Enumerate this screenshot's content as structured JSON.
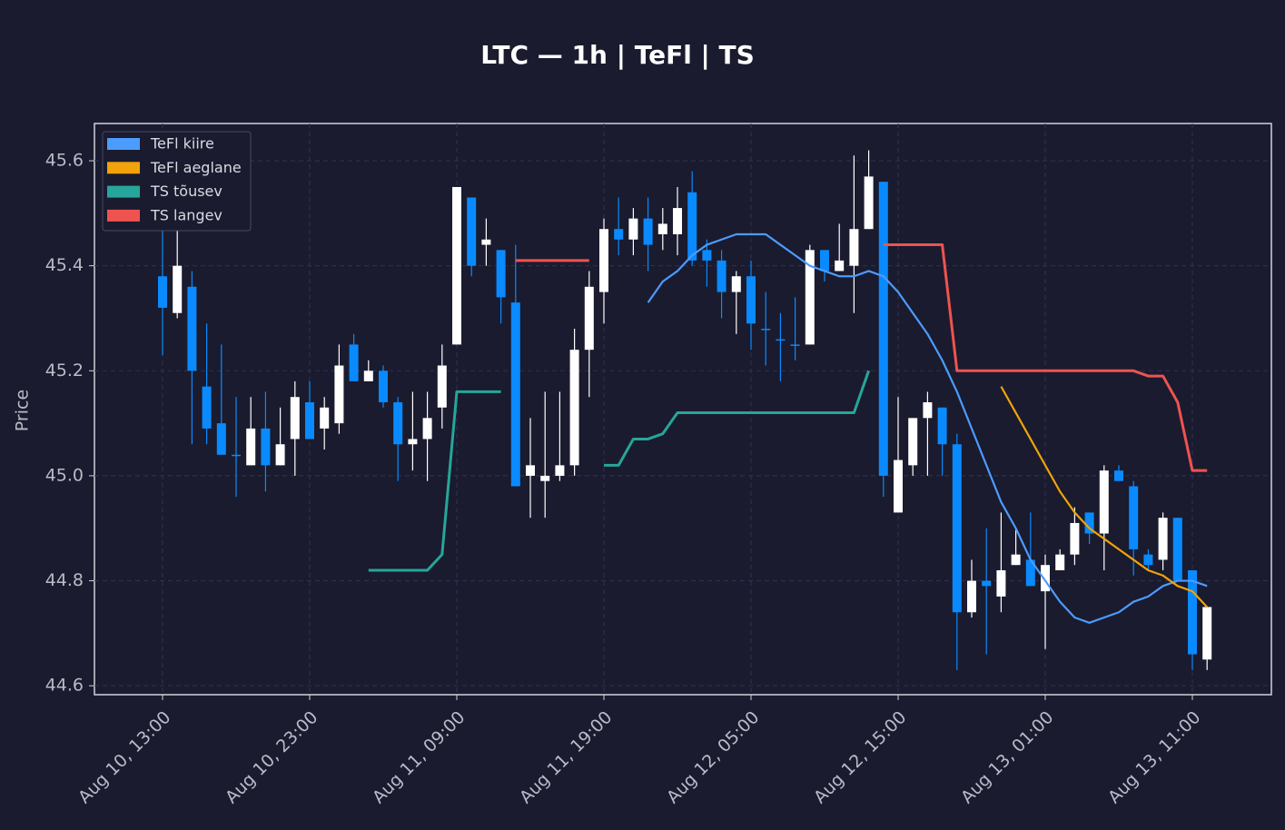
{
  "chart_data": {
    "type": "candlestick",
    "title": "LTC — 1h  |  TeFl  |  TS",
    "y_label": "Price",
    "categories": [
      "Aug 10, 13:00",
      null,
      null,
      null,
      null,
      null,
      null,
      null,
      null,
      null,
      "Aug 10, 23:00",
      null,
      null,
      null,
      null,
      null,
      null,
      null,
      null,
      null,
      "Aug 11, 09:00",
      null,
      null,
      null,
      null,
      null,
      null,
      null,
      null,
      null,
      "Aug 11, 19:00",
      null,
      null,
      null,
      null,
      null,
      null,
      null,
      null,
      null,
      "Aug 12, 05:00",
      null,
      null,
      null,
      null,
      null,
      null,
      null,
      null,
      null,
      "Aug 12, 15:00",
      null,
      null,
      null,
      null,
      null,
      null,
      null,
      null,
      null,
      "Aug 13, 01:00",
      null,
      null,
      null,
      null,
      null,
      null,
      null,
      null,
      null,
      "Aug 13, 11:00",
      null
    ],
    "ohlc": {
      "up_color": "#ffffff",
      "down_color": "#0a8aff",
      "open": [
        45.38,
        45.31,
        45.36,
        45.17,
        45.1,
        45.04,
        45.02,
        45.09,
        45.02,
        45.07,
        45.14,
        45.09,
        45.1,
        45.25,
        45.18,
        45.2,
        45.14,
        45.06,
        45.07,
        45.13,
        45.25,
        45.53,
        45.44,
        45.43,
        45.33,
        45.0,
        44.99,
        45.0,
        45.02,
        45.24,
        45.35,
        45.47,
        45.45,
        45.49,
        45.46,
        45.46,
        45.54,
        45.43,
        45.41,
        45.35,
        45.38,
        45.28,
        45.26,
        45.25,
        45.25,
        45.43,
        45.39,
        45.4,
        45.47,
        45.56,
        44.93,
        45.02,
        45.11,
        45.13,
        45.06,
        44.74,
        44.8,
        44.77,
        44.83,
        44.84,
        44.78,
        44.82,
        44.85,
        44.93,
        44.89,
        45.01,
        44.98,
        44.85,
        44.84,
        44.92,
        44.82,
        44.65
      ],
      "high": [
        45.49,
        45.49,
        45.39,
        45.29,
        45.25,
        45.15,
        45.15,
        45.16,
        45.13,
        45.18,
        45.18,
        45.15,
        45.25,
        45.27,
        45.22,
        45.21,
        45.15,
        45.16,
        45.16,
        45.25,
        45.55,
        45.53,
        45.49,
        45.43,
        45.44,
        45.11,
        45.16,
        45.16,
        45.28,
        45.39,
        45.49,
        45.53,
        45.51,
        45.53,
        45.51,
        45.55,
        45.58,
        45.45,
        45.43,
        45.39,
        45.41,
        45.35,
        45.31,
        45.34,
        45.44,
        45.43,
        45.48,
        45.61,
        45.62,
        45.56,
        45.15,
        45.11,
        45.16,
        45.13,
        45.08,
        44.84,
        44.9,
        44.93,
        44.9,
        44.93,
        44.85,
        44.86,
        44.94,
        44.93,
        45.02,
        45.02,
        44.99,
        44.86,
        44.93,
        44.92,
        44.82,
        44.75
      ],
      "low": [
        45.23,
        45.3,
        45.06,
        45.06,
        45.04,
        44.96,
        45.02,
        44.97,
        45.02,
        45.0,
        45.07,
        45.05,
        45.08,
        45.18,
        45.18,
        45.13,
        44.99,
        45.01,
        44.99,
        45.09,
        45.25,
        45.38,
        45.4,
        45.29,
        44.98,
        44.92,
        44.92,
        44.99,
        45.0,
        45.15,
        45.29,
        45.42,
        45.42,
        45.39,
        45.43,
        45.42,
        45.4,
        45.36,
        45.3,
        45.27,
        45.24,
        45.21,
        45.18,
        45.22,
        45.25,
        45.37,
        45.39,
        45.31,
        45.47,
        44.96,
        44.93,
        45.0,
        45.0,
        45.0,
        44.63,
        44.73,
        44.66,
        44.74,
        44.83,
        44.79,
        44.67,
        44.82,
        44.83,
        44.87,
        44.82,
        44.99,
        44.81,
        44.82,
        44.82,
        44.8,
        44.63,
        44.63
      ],
      "close": [
        45.32,
        45.4,
        45.2,
        45.09,
        45.04,
        45.04,
        45.09,
        45.02,
        45.06,
        45.15,
        45.07,
        45.13,
        45.21,
        45.18,
        45.2,
        45.14,
        45.06,
        45.07,
        45.11,
        45.21,
        45.55,
        45.4,
        45.45,
        45.34,
        44.98,
        45.02,
        45.0,
        45.02,
        45.24,
        45.36,
        45.47,
        45.45,
        45.49,
        45.44,
        45.48,
        45.51,
        45.41,
        45.41,
        45.35,
        45.38,
        45.29,
        45.28,
        45.26,
        45.25,
        45.43,
        45.39,
        45.41,
        45.47,
        45.57,
        45.0,
        45.03,
        45.11,
        45.14,
        45.06,
        44.74,
        44.8,
        44.79,
        44.82,
        44.85,
        44.79,
        44.83,
        44.85,
        44.91,
        44.89,
        45.01,
        44.99,
        44.86,
        44.83,
        44.92,
        44.8,
        44.66,
        44.75
      ]
    },
    "series": [
      {
        "name": "TeFl kiire",
        "color": "#4c9bff",
        "values": [
          null,
          null,
          null,
          null,
          null,
          null,
          null,
          null,
          null,
          null,
          null,
          null,
          null,
          null,
          null,
          null,
          null,
          null,
          null,
          null,
          null,
          null,
          null,
          null,
          null,
          null,
          null,
          null,
          null,
          null,
          null,
          null,
          null,
          45.33,
          45.37,
          45.39,
          45.42,
          45.44,
          45.45,
          45.46,
          45.46,
          45.46,
          45.44,
          45.42,
          45.4,
          45.39,
          45.38,
          45.38,
          45.39,
          45.38,
          45.35,
          45.31,
          45.27,
          45.22,
          45.16,
          45.09,
          45.02,
          44.95,
          44.9,
          44.84,
          44.8,
          44.76,
          44.73,
          44.72,
          44.73,
          44.74,
          44.76,
          44.77,
          44.79,
          44.8,
          44.8,
          44.79
        ]
      },
      {
        "name": "TeFl aeglane",
        "color": "#f0a30a",
        "values": [
          null,
          null,
          null,
          null,
          null,
          null,
          null,
          null,
          null,
          null,
          null,
          null,
          null,
          null,
          null,
          null,
          null,
          null,
          null,
          null,
          null,
          null,
          null,
          null,
          null,
          null,
          null,
          null,
          null,
          null,
          null,
          null,
          null,
          null,
          null,
          null,
          null,
          null,
          null,
          null,
          null,
          null,
          null,
          null,
          null,
          null,
          null,
          null,
          null,
          null,
          null,
          null,
          null,
          null,
          null,
          null,
          null,
          45.17,
          45.12,
          45.07,
          45.02,
          44.97,
          44.93,
          44.9,
          44.88,
          44.86,
          44.84,
          44.82,
          44.81,
          44.79,
          44.78,
          44.75
        ]
      },
      {
        "name": "TS tõusev",
        "color": "#26a69a",
        "values": [
          null,
          null,
          null,
          null,
          null,
          null,
          null,
          null,
          null,
          null,
          null,
          null,
          null,
          null,
          44.82,
          44.82,
          44.82,
          44.82,
          44.82,
          44.85,
          45.16,
          45.16,
          45.16,
          45.16,
          null,
          null,
          null,
          null,
          null,
          null,
          45.02,
          45.02,
          45.07,
          45.07,
          45.08,
          45.12,
          45.12,
          45.12,
          45.12,
          45.12,
          45.12,
          45.12,
          45.12,
          45.12,
          45.12,
          45.12,
          45.12,
          45.12,
          45.2,
          null,
          null,
          null,
          null,
          null,
          null,
          null,
          null,
          null,
          null,
          null,
          null,
          null,
          null,
          null,
          null,
          null,
          null,
          null,
          null,
          null,
          null,
          null
        ]
      },
      {
        "name": "TS langev",
        "color": "#ef5350",
        "values": [
          null,
          null,
          null,
          null,
          null,
          null,
          null,
          null,
          null,
          null,
          null,
          null,
          null,
          null,
          null,
          null,
          null,
          null,
          null,
          null,
          null,
          null,
          null,
          null,
          45.41,
          45.41,
          45.41,
          45.41,
          45.41,
          45.41,
          null,
          null,
          null,
          null,
          null,
          null,
          null,
          null,
          null,
          null,
          null,
          null,
          null,
          null,
          null,
          null,
          null,
          null,
          null,
          45.44,
          45.44,
          45.44,
          45.44,
          45.44,
          45.2,
          45.2,
          45.2,
          45.2,
          45.2,
          45.2,
          45.2,
          45.2,
          45.2,
          45.2,
          45.2,
          45.2,
          45.2,
          45.19,
          45.19,
          45.14,
          45.01,
          45.01
        ]
      }
    ],
    "ylim": [
      44.583,
      45.671
    ],
    "yticks": [
      44.6,
      44.8,
      {
        "value": 45,
        "label": "45.0"
      },
      45.2,
      45.4,
      45.6
    ],
    "grid": true,
    "legend": "upper-left"
  }
}
